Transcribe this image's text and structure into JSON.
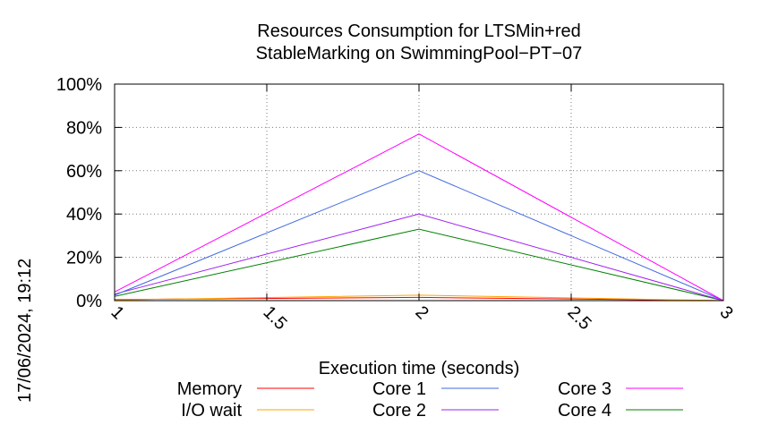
{
  "chart_data": {
    "type": "line",
    "title": [
      "Resources Consumption for LTSMin+red",
      "StableMarking on SwimmingPool−PT−07"
    ],
    "xlabel": "Execution time (seconds)",
    "ylabel": "",
    "x": [
      1,
      2,
      3
    ],
    "xlim": [
      1,
      3
    ],
    "ylim": [
      0,
      100
    ],
    "xticks": [
      1,
      1.5,
      2,
      2.5,
      3
    ],
    "xtick_labels": [
      "1",
      "1.5",
      "2",
      "2.5",
      "3"
    ],
    "yticks": [
      0,
      20,
      40,
      60,
      80,
      100
    ],
    "ytick_labels": [
      "0%",
      "20%",
      "40%",
      "60%",
      "80%",
      "100%"
    ],
    "grid": true,
    "legend_position": "bottom",
    "series": [
      {
        "name": "Memory",
        "color": "#ff0000",
        "values": [
          0.5,
          1.5,
          0
        ]
      },
      {
        "name": "I/O wait",
        "color": "#ffa500",
        "values": [
          0.3,
          2.5,
          0
        ]
      },
      {
        "name": "Core 1",
        "color": "#4169e1",
        "values": [
          2.5,
          60,
          0
        ]
      },
      {
        "name": "Core 2",
        "color": "#a020f0",
        "values": [
          3.0,
          40,
          0
        ]
      },
      {
        "name": "Core 3",
        "color": "#ff00ff",
        "values": [
          4.0,
          77,
          0
        ]
      },
      {
        "name": "Core 4",
        "color": "#008000",
        "values": [
          2.0,
          33,
          0
        ]
      }
    ]
  },
  "timestamp": "17/06/2024, 19:12"
}
